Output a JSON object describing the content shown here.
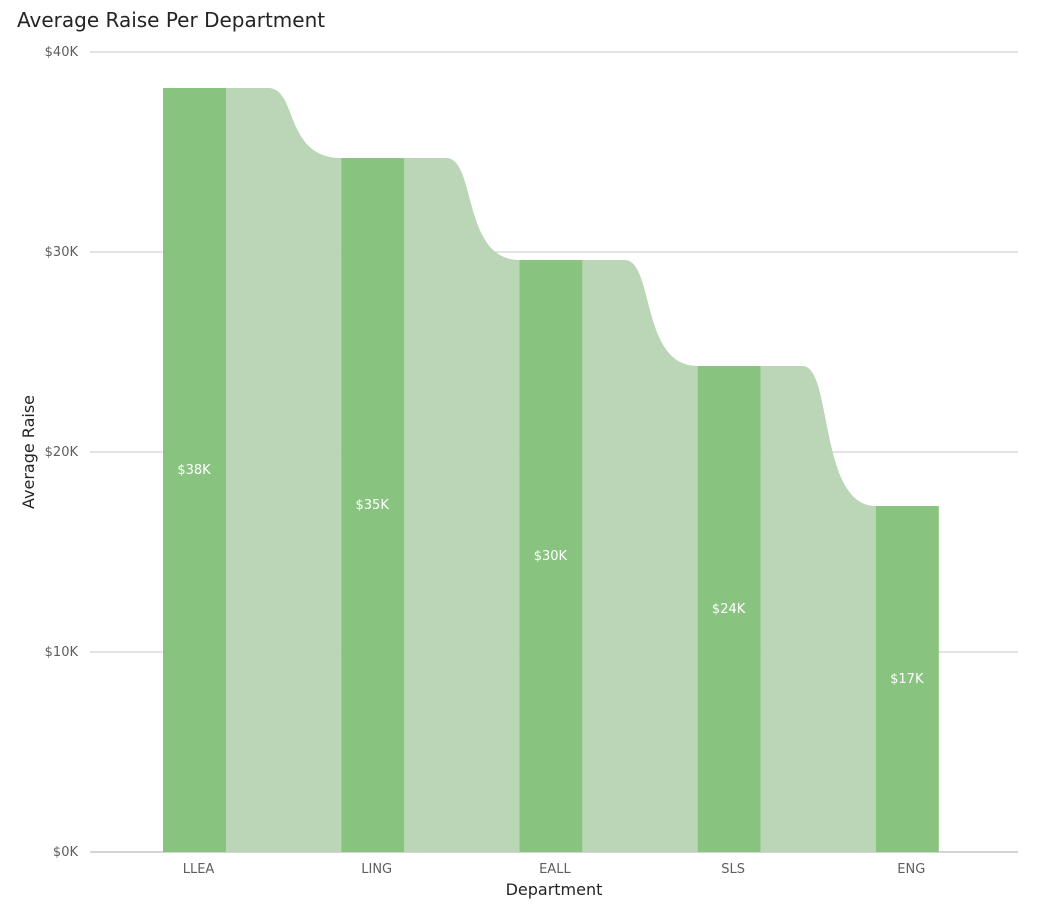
{
  "chart_data": {
    "type": "bar",
    "title": "Average Raise Per Department",
    "xlabel": "Department",
    "ylabel": "Average Raise",
    "categories": [
      "LLEA",
      "LING",
      "EALL",
      "SLS",
      "ENG"
    ],
    "values": [
      38200,
      34700,
      29600,
      24300,
      17300
    ],
    "data_labels": [
      "$38K",
      "$35K",
      "$30K",
      "$24K",
      "$17K"
    ],
    "ylim": [
      0,
      40000
    ],
    "yticks": [
      0,
      10000,
      20000,
      30000,
      40000
    ],
    "ytick_labels": [
      "$0K",
      "$10K",
      "$20K",
      "$30K",
      "$40K"
    ],
    "grid": true,
    "legend": "none",
    "colors": {
      "bar": "#88c47f",
      "ribbon": "#bad6b6",
      "grid": "#c8c6c4"
    }
  }
}
